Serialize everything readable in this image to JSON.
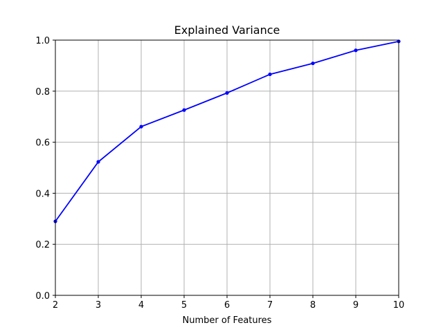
{
  "chart_data": {
    "type": "line",
    "title": "Explained Variance",
    "xlabel": "Number of Features",
    "ylabel": "",
    "xlim": [
      2,
      10
    ],
    "ylim": [
      0.0,
      1.0
    ],
    "xticks": [
      "2",
      "3",
      "4",
      "5",
      "6",
      "7",
      "8",
      "9",
      "10"
    ],
    "yticks": [
      "0.0",
      "0.2",
      "0.4",
      "0.6",
      "0.8",
      "1.0"
    ],
    "grid": true,
    "line_color": "#0000ff",
    "grid_color": "#b0b0b0",
    "x": [
      2,
      3,
      4,
      5,
      6,
      7,
      8,
      9,
      10
    ],
    "values": [
      0.29,
      0.523,
      0.661,
      0.726,
      0.793,
      0.866,
      0.909,
      0.96,
      0.995
    ]
  }
}
